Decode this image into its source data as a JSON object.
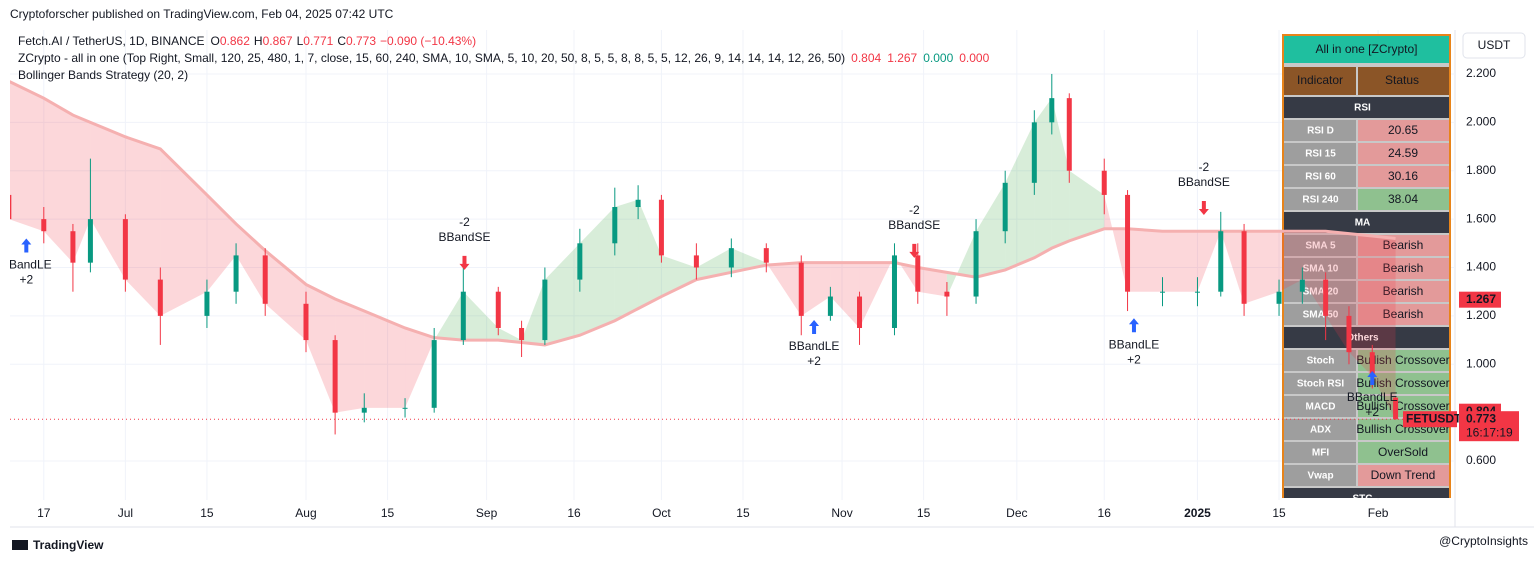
{
  "header": {
    "published": "Cryptoforscher published on TradingView.com, Feb 04, 2025 07:42 UTC",
    "currency": "USDT"
  },
  "legend": {
    "symbol": "Fetch.AI / TetherUS, 1D, BINANCE",
    "ohlc_prefix": [
      "O",
      "H",
      "L",
      "C"
    ],
    "change": "−0.090 (−10.43%)",
    "indicator": "ZCrypto - all in one (Top Right, Small, 120, 25, 480, 1, 7, close, 15, 60, 240, SMA, 10, SMA, 5, 10, 20, 50, 8, 5, 5, 8, 8, 5, 5, 12, 26, 9, 14, 14, 14, 12, 26, 50)",
    "indicator_values": [
      0.804,
      1.267,
      0,
      0
    ],
    "indicator_value_labels": [
      "0.804",
      "1.267",
      "0.000",
      "0.000"
    ],
    "indicator_colors": [
      "#f23645",
      "#f23645",
      "#089981",
      "#f23645"
    ],
    "strategy": "Bollinger Bands Strategy (20, 2)"
  },
  "chart_data": {
    "type": "candlestick",
    "up_color": "#089981",
    "down_color": "#f23645",
    "grid": true,
    "candles": {
      "x": [
        -6,
        0,
        5,
        8,
        14,
        20,
        28,
        33,
        38,
        45,
        50,
        55,
        62,
        67,
        72,
        78,
        82,
        86,
        92,
        98,
        102,
        106,
        112,
        118,
        124,
        130,
        135,
        140,
        146,
        150,
        155,
        160,
        165,
        170,
        173,
        176,
        182,
        186,
        192,
        198,
        202,
        206,
        212,
        216,
        220,
        224,
        228,
        232
      ],
      "open": [
        1.7,
        1.6,
        1.55,
        1.42,
        1.6,
        1.35,
        1.2,
        1.3,
        1.45,
        1.25,
        1.1,
        0.8,
        0.82,
        0.82,
        1.1,
        1.3,
        1.15,
        1.1,
        1.35,
        1.5,
        1.65,
        1.68,
        1.45,
        1.4,
        1.48,
        1.42,
        1.2,
        1.28,
        1.15,
        1.45,
        1.3,
        1.28,
        1.55,
        1.75,
        2.0,
        2.1,
        1.8,
        1.7,
        1.3,
        1.3,
        1.3,
        1.55,
        1.25,
        1.3,
        1.35,
        1.2,
        1.05,
        0.862
      ],
      "high": [
        1.75,
        1.65,
        1.58,
        1.85,
        1.62,
        1.4,
        1.35,
        1.5,
        1.48,
        1.3,
        1.12,
        0.88,
        0.86,
        1.15,
        1.42,
        1.32,
        1.18,
        1.4,
        1.56,
        1.73,
        1.74,
        1.7,
        1.5,
        1.52,
        1.5,
        1.45,
        1.32,
        1.3,
        1.5,
        1.5,
        1.34,
        1.6,
        1.8,
        2.05,
        2.2,
        2.12,
        1.85,
        1.72,
        1.36,
        1.36,
        1.63,
        1.58,
        1.35,
        1.4,
        1.38,
        1.24,
        1.08,
        0.867
      ],
      "low": [
        1.55,
        1.5,
        1.3,
        1.38,
        1.3,
        1.08,
        1.15,
        1.25,
        1.2,
        1.05,
        0.71,
        0.76,
        0.78,
        0.8,
        1.08,
        1.12,
        1.03,
        1.08,
        1.3,
        1.45,
        1.6,
        1.42,
        1.35,
        1.36,
        1.38,
        1.12,
        1.18,
        1.08,
        1.12,
        1.25,
        1.2,
        1.25,
        1.5,
        1.7,
        1.95,
        1.75,
        1.62,
        1.22,
        1.24,
        1.24,
        1.28,
        1.2,
        1.2,
        1.25,
        1.1,
        1.0,
        0.9,
        0.771
      ],
      "close": [
        1.6,
        1.55,
        1.42,
        1.6,
        1.35,
        1.2,
        1.3,
        1.45,
        1.25,
        1.1,
        0.8,
        0.82,
        0.82,
        1.1,
        1.3,
        1.15,
        1.1,
        1.35,
        1.5,
        1.65,
        1.68,
        1.45,
        1.4,
        1.48,
        1.42,
        1.2,
        1.28,
        1.15,
        1.45,
        1.3,
        1.28,
        1.55,
        1.75,
        2.0,
        2.1,
        1.8,
        1.7,
        1.3,
        1.3,
        1.3,
        1.55,
        1.25,
        1.3,
        1.35,
        1.2,
        1.05,
        0.95,
        0.773
      ]
    },
    "basis": [
      2.17,
      2.1,
      2.03,
      2.0,
      1.94,
      1.89,
      1.7,
      1.58,
      1.47,
      1.33,
      1.27,
      1.22,
      1.15,
      1.11,
      1.1,
      1.1,
      1.09,
      1.08,
      1.12,
      1.18,
      1.23,
      1.28,
      1.35,
      1.38,
      1.41,
      1.42,
      1.42,
      1.42,
      1.42,
      1.4,
      1.38,
      1.36,
      1.39,
      1.44,
      1.48,
      1.51,
      1.56,
      1.56,
      1.55,
      1.55,
      1.55,
      1.55,
      1.55,
      1.55,
      1.55,
      1.54,
      1.53,
      1.52
    ],
    "signals": [
      {
        "text": "BBandLE",
        "qty": "+2",
        "side": "long",
        "x": -3,
        "y": 1.52
      },
      {
        "text": "BBandSE",
        "qty": "-2",
        "side": "short",
        "x": 72.2,
        "y": 1.39
      },
      {
        "text": "BBandLE",
        "qty": "+2",
        "side": "long",
        "x": 132.2,
        "y": 1.183
      },
      {
        "text": "BBandSE",
        "qty": "-2",
        "side": "short",
        "x": 149.4,
        "y": 1.44
      },
      {
        "text": "BBandLE",
        "qty": "+2",
        "side": "long",
        "x": 187.1,
        "y": 1.19
      },
      {
        "text": "BBandSE",
        "qty": "-2",
        "side": "short",
        "x": 199.1,
        "y": 1.617
      },
      {
        "text": "BBandLE",
        "qty": "+2",
        "side": "long",
        "x": 228,
        "y": 0.972
      }
    ],
    "xlim": [
      -5.8,
      242.2
    ],
    "ylim": [
      0.439,
      2.361
    ],
    "xticks": [
      {
        "value": 0,
        "label": "17"
      },
      {
        "value": 14,
        "label": "Jul"
      },
      {
        "value": 28,
        "label": "15"
      },
      {
        "value": 45,
        "label": "Aug"
      },
      {
        "value": 59,
        "label": "15"
      },
      {
        "value": 76,
        "label": "Sep"
      },
      {
        "value": 91,
        "label": "16"
      },
      {
        "value": 106,
        "label": "Oct"
      },
      {
        "value": 120,
        "label": "15"
      },
      {
        "value": 137,
        "label": "Nov"
      },
      {
        "value": 151,
        "label": "15"
      },
      {
        "value": 167,
        "label": "Dec"
      },
      {
        "value": 182,
        "label": "16"
      },
      {
        "value": 198,
        "label": "2025"
      },
      {
        "value": 212,
        "label": "15"
      },
      {
        "value": 229,
        "label": "Feb"
      }
    ],
    "yticks": [
      {
        "value": 2.2,
        "label": "2.200"
      },
      {
        "value": 2.0,
        "label": "2.000"
      },
      {
        "value": 1.8,
        "label": "1.800"
      },
      {
        "value": 1.6,
        "label": "1.600"
      },
      {
        "value": 1.4,
        "label": "1.400"
      },
      {
        "value": 1.2,
        "label": "1.200"
      },
      {
        "value": 1.0,
        "label": "1.000"
      },
      {
        "value": 0.6,
        "label": "0.600"
      }
    ],
    "symbol_badge": "FETUSDT",
    "countdown": "16:17:19"
  },
  "panel": {
    "title": "All in one [ZCrypto]",
    "columns": [
      "Indicator",
      "Status"
    ],
    "sections": [
      {
        "title": "RSI",
        "rows": [
          {
            "label": "RSI D",
            "status": "20.65",
            "color": "#e39a9a"
          },
          {
            "label": "RSI 15",
            "status": "24.59",
            "color": "#e39a9a"
          },
          {
            "label": "RSI 60",
            "status": "30.16",
            "color": "#e39a9a"
          },
          {
            "label": "RSI 240",
            "status": "38.04",
            "color": "#8fc18f"
          }
        ]
      },
      {
        "title": "MA",
        "rows": [
          {
            "label": "SMA 5",
            "status": "Bearish",
            "color": "#e39a9a"
          },
          {
            "label": "SMA 10",
            "status": "Bearish",
            "color": "#e39a9a"
          },
          {
            "label": "SMA 20",
            "status": "Bearish",
            "color": "#e39a9a"
          },
          {
            "label": "SMA 50",
            "status": "Bearish",
            "color": "#e39a9a"
          }
        ]
      },
      {
        "title": "Others",
        "rows": [
          {
            "label": "Stoch",
            "status": "Bullish Crossover",
            "color": "#8fc18f"
          },
          {
            "label": "Stoch RSI",
            "status": "Bullish Crossover",
            "color": "#8fc18f"
          },
          {
            "label": "MACD",
            "status": "Bullish Crossover",
            "color": "#8fc18f"
          },
          {
            "label": "ADX",
            "status": "Bullish Crossover",
            "color": "#8fc18f"
          },
          {
            "label": "MFI",
            "status": "OverSold",
            "color": "#8fc18f"
          },
          {
            "label": "Vwap",
            "status": "Down Trend",
            "color": "#e39a9a"
          }
        ]
      },
      {
        "title": "STC",
        "rows": []
      }
    ]
  },
  "footer": {
    "brand": "TradingView",
    "watermark": "@CryptoInsights"
  }
}
